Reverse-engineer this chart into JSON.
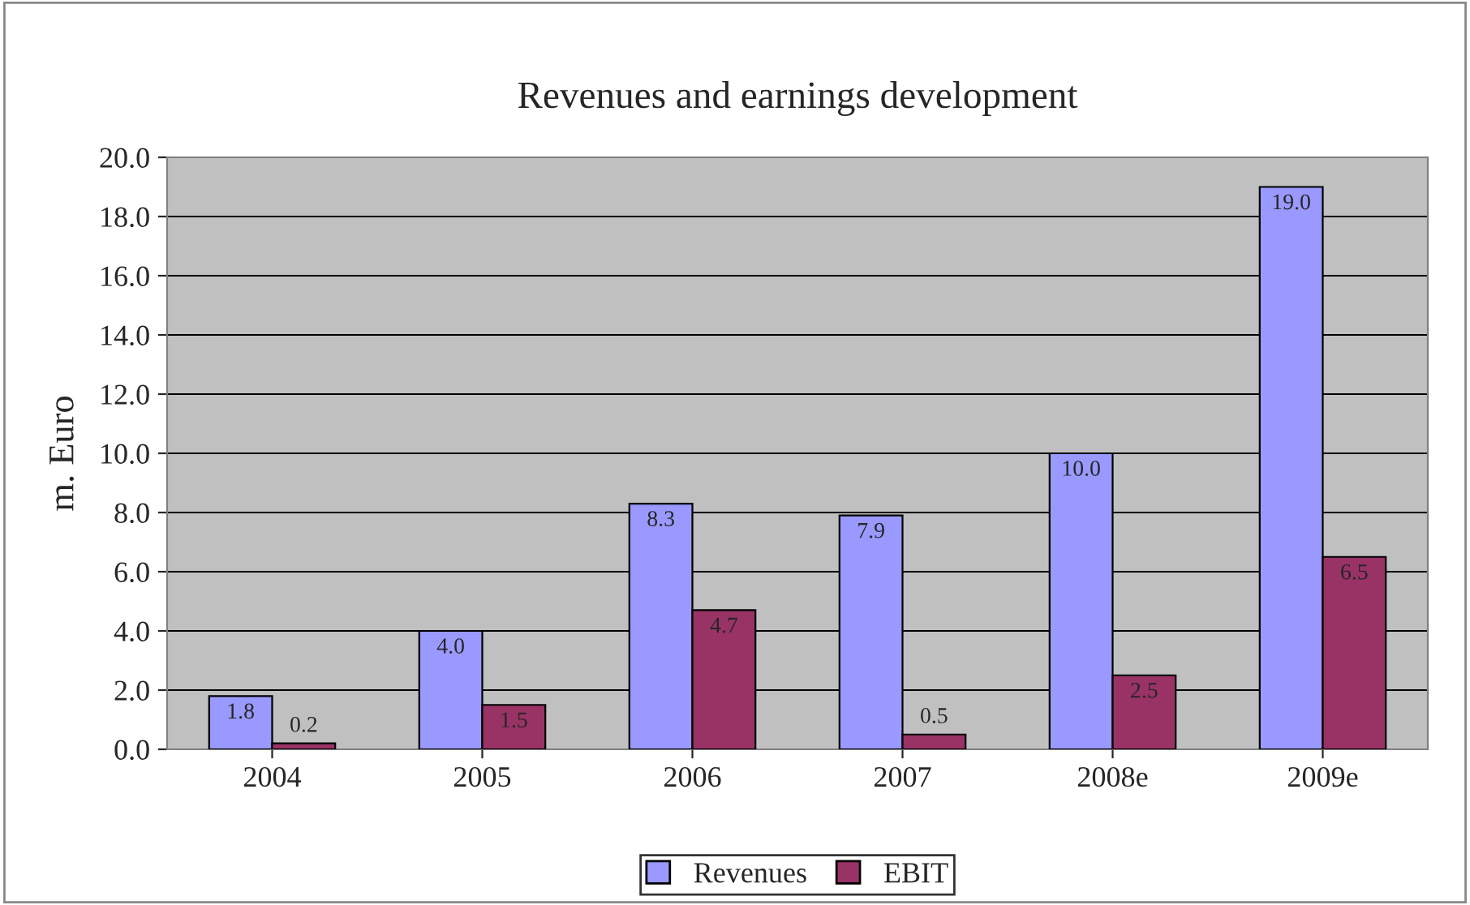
{
  "chart_data": {
    "type": "bar",
    "title": "Revenues and earnings development",
    "ylabel": "m. Euro",
    "categories": [
      "2004",
      "2005",
      "2006",
      "2007",
      "2008e",
      "2009e"
    ],
    "series": [
      {
        "name": "Revenues",
        "color": "#9999ff",
        "values": [
          1.8,
          4.0,
          8.3,
          7.9,
          10.0,
          19.0
        ],
        "value_labels": [
          "1.8",
          "4.0",
          "8.3",
          "7.9",
          "10.0",
          "19.0"
        ]
      },
      {
        "name": "EBIT",
        "color": "#993366",
        "values": [
          0.2,
          1.5,
          4.7,
          0.5,
          2.5,
          6.5
        ],
        "value_labels": [
          "0.2",
          "1.5",
          "4.7",
          "0.5",
          "2.5",
          "6.5"
        ]
      }
    ],
    "ylim": [
      0,
      20
    ],
    "yticks": [
      {
        "value": 0,
        "label": "0.0"
      },
      {
        "value": 2,
        "label": "2.0"
      },
      {
        "value": 4,
        "label": "4.0"
      },
      {
        "value": 6,
        "label": "6.0"
      },
      {
        "value": 8,
        "label": "8.0"
      },
      {
        "value": 10,
        "label": "10.0"
      },
      {
        "value": 12,
        "label": "12.0"
      },
      {
        "value": 14,
        "label": "14.0"
      },
      {
        "value": 16,
        "label": "16.0"
      },
      {
        "value": 18,
        "label": "18.0"
      },
      {
        "value": 20,
        "label": "20.0"
      }
    ],
    "grid": "y",
    "legend": "bottom"
  }
}
